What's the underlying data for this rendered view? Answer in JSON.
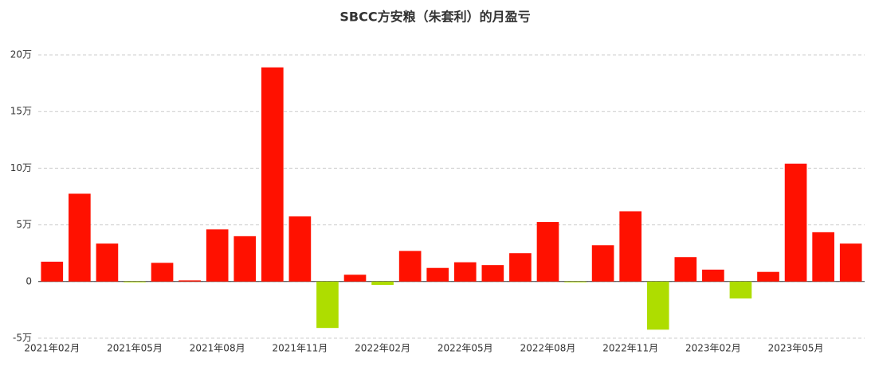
{
  "chart_data": {
    "type": "bar",
    "title": "SBCC方安粮（朱套利）的月盈亏",
    "categories": [
      "2021年02月",
      null,
      null,
      "2021年05月",
      null,
      null,
      "2021年08月",
      null,
      null,
      "2021年11月",
      null,
      null,
      "2022年02月",
      null,
      null,
      "2022年05月",
      null,
      null,
      "2022年08月",
      null,
      null,
      "2022年11月",
      null,
      null,
      "2023年02月",
      null,
      null,
      "2023年05月",
      null,
      null
    ],
    "values": [
      1.75,
      7.75,
      3.35,
      -0.05,
      1.65,
      0.1,
      4.6,
      4.0,
      18.9,
      5.75,
      -4.1,
      0.6,
      -0.3,
      2.7,
      1.2,
      1.7,
      1.45,
      2.5,
      5.25,
      -0.05,
      3.2,
      6.2,
      -4.25,
      2.15,
      1.05,
      -1.5,
      0.85,
      10.4,
      4.35,
      3.35
    ],
    "color": "#ff1100",
    "negative_color": "#aedd00",
    "ylim": [
      -5,
      20
    ],
    "yticks": [
      {
        "value": -5,
        "label": "-5万"
      },
      0,
      {
        "value": 5,
        "label": "5万"
      },
      {
        "value": 10,
        "label": "10万"
      },
      {
        "value": 15,
        "label": "15万"
      },
      {
        "value": 20,
        "label": "20万"
      }
    ],
    "grid": true
  }
}
